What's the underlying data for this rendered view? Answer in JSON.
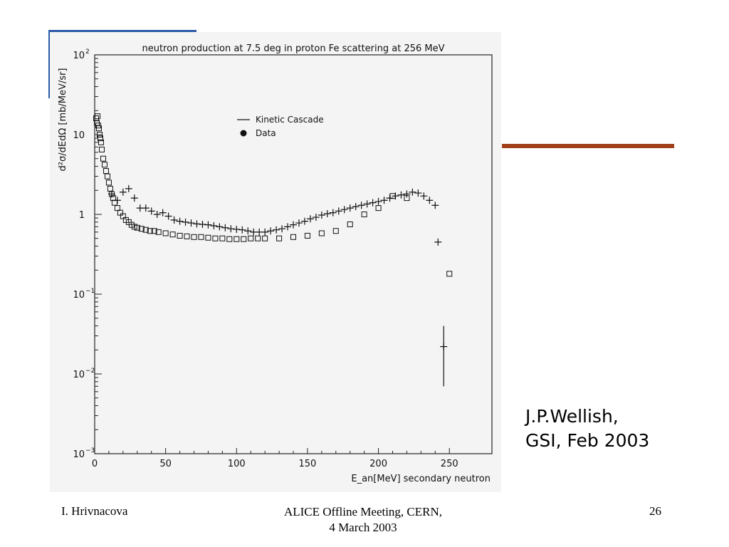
{
  "slide": {
    "annotation_line1": "J.P.Wellish,",
    "annotation_line2": "GSI, Feb 2003",
    "footer_left": "I. Hrivnacova",
    "footer_center_line1": "ALICE Offline Meeting, CERN,",
    "footer_center_line2": "4 March 2003",
    "page_number": "26",
    "colors": {
      "accent_blue": "#2a5aa8",
      "accent_rust": "#a0401a",
      "plot_bg": "#f4f4f4"
    }
  },
  "chart_data": {
    "type": "scatter",
    "title": "neutron production at 7.5 deg in proton Fe scattering at 256 MeV",
    "xlabel": "E_an[MeV] secondary neutron",
    "ylabel": "d²σ/dEdΩ [mb/MeV/sr]",
    "x_ticks": [
      "0",
      "50",
      "100",
      "150",
      "200",
      "250"
    ],
    "y_ticks": [
      {
        "value": 100,
        "label": "10",
        "exp": "2"
      },
      {
        "value": 10,
        "label": "10",
        "exp": ""
      },
      {
        "value": 1,
        "label": "1",
        "exp": ""
      },
      {
        "value": 0.1,
        "label": "10",
        "exp": "−1"
      },
      {
        "value": 0.01,
        "label": "10",
        "exp": "−2"
      },
      {
        "value": 0.001,
        "label": "10",
        "exp": "−3"
      }
    ],
    "xlim": [
      0,
      280
    ],
    "ylim": [
      0.001,
      100
    ],
    "log_y": true,
    "legend": [
      {
        "name": "Kinetic Cascade",
        "marker": "line"
      },
      {
        "name": "Data",
        "marker": "dot"
      }
    ],
    "series": [
      {
        "marker": "square",
        "points": [
          [
            1,
            16
          ],
          [
            1.5,
            14
          ],
          [
            2,
            17
          ],
          [
            2.5,
            13
          ],
          [
            3,
            12
          ],
          [
            3.5,
            10
          ],
          [
            4,
            9
          ],
          [
            4.5,
            8
          ],
          [
            5,
            6.5
          ],
          [
            6,
            5
          ],
          [
            7,
            4.2
          ],
          [
            8,
            3.5
          ],
          [
            9,
            3
          ],
          [
            10,
            2.5
          ],
          [
            11,
            2.1
          ],
          [
            12,
            1.8
          ],
          [
            13,
            1.6
          ],
          [
            14,
            1.4
          ],
          [
            16,
            1.2
          ],
          [
            18,
            1.05
          ],
          [
            20,
            0.95
          ],
          [
            22,
            0.85
          ],
          [
            24,
            0.8
          ],
          [
            26,
            0.74
          ],
          [
            28,
            0.7
          ],
          [
            30,
            0.68
          ],
          [
            33,
            0.66
          ],
          [
            36,
            0.64
          ],
          [
            39,
            0.62
          ],
          [
            42,
            0.62
          ],
          [
            45,
            0.6
          ],
          [
            50,
            0.58
          ],
          [
            55,
            0.56
          ],
          [
            60,
            0.54
          ],
          [
            65,
            0.53
          ],
          [
            70,
            0.52
          ],
          [
            75,
            0.52
          ],
          [
            80,
            0.51
          ],
          [
            85,
            0.5
          ],
          [
            90,
            0.5
          ],
          [
            95,
            0.49
          ],
          [
            100,
            0.49
          ],
          [
            105,
            0.49
          ],
          [
            110,
            0.5
          ],
          [
            115,
            0.5
          ],
          [
            120,
            0.5
          ],
          [
            130,
            0.5
          ],
          [
            140,
            0.52
          ],
          [
            150,
            0.54
          ],
          [
            160,
            0.58
          ],
          [
            170,
            0.62
          ],
          [
            180,
            0.75
          ],
          [
            190,
            1.0
          ],
          [
            200,
            1.2
          ],
          [
            210,
            1.7
          ],
          [
            220,
            1.6
          ],
          [
            250,
            0.18
          ]
        ]
      },
      {
        "marker": "cross",
        "points": [
          [
            12,
            1.8
          ],
          [
            16,
            1.5
          ],
          [
            20,
            1.9
          ],
          [
            24,
            2.1
          ],
          [
            28,
            1.6
          ],
          [
            32,
            1.2
          ],
          [
            36,
            1.2
          ],
          [
            40,
            1.1
          ],
          [
            44,
            1.0
          ],
          [
            48,
            1.05
          ],
          [
            52,
            0.95
          ],
          [
            56,
            0.85
          ],
          [
            60,
            0.82
          ],
          [
            64,
            0.8
          ],
          [
            68,
            0.78
          ],
          [
            72,
            0.76
          ],
          [
            76,
            0.75
          ],
          [
            80,
            0.74
          ],
          [
            84,
            0.72
          ],
          [
            88,
            0.7
          ],
          [
            92,
            0.68
          ],
          [
            96,
            0.66
          ],
          [
            100,
            0.65
          ],
          [
            104,
            0.64
          ],
          [
            108,
            0.62
          ],
          [
            112,
            0.6
          ],
          [
            116,
            0.6
          ],
          [
            120,
            0.6
          ],
          [
            124,
            0.62
          ],
          [
            128,
            0.64
          ],
          [
            132,
            0.66
          ],
          [
            136,
            0.7
          ],
          [
            140,
            0.74
          ],
          [
            144,
            0.78
          ],
          [
            148,
            0.82
          ],
          [
            152,
            0.88
          ],
          [
            156,
            0.92
          ],
          [
            160,
            0.98
          ],
          [
            164,
            1.02
          ],
          [
            168,
            1.05
          ],
          [
            172,
            1.1
          ],
          [
            176,
            1.15
          ],
          [
            180,
            1.2
          ],
          [
            184,
            1.25
          ],
          [
            188,
            1.3
          ],
          [
            192,
            1.35
          ],
          [
            196,
            1.4
          ],
          [
            200,
            1.45
          ],
          [
            204,
            1.5
          ],
          [
            208,
            1.6
          ],
          [
            212,
            1.7
          ],
          [
            216,
            1.75
          ],
          [
            220,
            1.8
          ],
          [
            224,
            1.9
          ],
          [
            228,
            1.85
          ],
          [
            232,
            1.7
          ],
          [
            236,
            1.5
          ],
          [
            240,
            1.3
          ],
          [
            242,
            0.45
          ],
          [
            246,
            0.022
          ]
        ]
      }
    ]
  }
}
